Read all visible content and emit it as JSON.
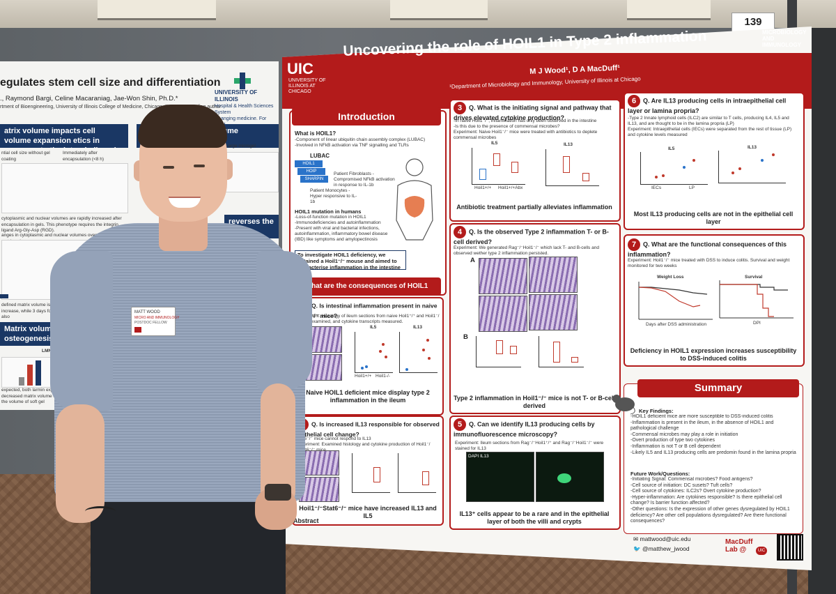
{
  "booth_number": "139",
  "left_poster": {
    "title_fragment": "egulates stem cell size and differentiation",
    "authors_fragment": "., Raymond Bargi, Celine Macaraniag, Jae-Won Shin, Ph.D.*",
    "affiliation_fragment": "rtment of Bioengineering, University of Illinois College of Medicine, Chicago, IL; *Corresponding author",
    "university": "UNIVERSITY OF ILLINOIS",
    "university_sub": "Hospital & Health Sciences System",
    "university_sub2": "Changing medicine. For good.",
    "heading_1": "atrix volume impacts cell volume expansion etics in response to the integrin ligand RGD",
    "heading_2": "es cytoplasmic ear volume",
    "heading_3": "reverses the lume expansion",
    "heading_4": "Matrix volume regulate osteogenesis distinct",
    "text_1": "ntial cell size without gel coating",
    "text_2": "Immediately after encapsulation (<8 h)",
    "text_3": "Large microgel",
    "text_4": "cytoplasmic and nuclear volumes are rapidly increased after encapsulation in gels. This phenotype requires the integrin ligand Arg-Gly-Asp (RGD).",
    "text_5": "anges in cytoplasmic and nuclear volumes over time in varied matrix volume",
    "text_6": "defined matrix volume is maintained thro plasmic volume to increase, while 3 days fo O-alginate gels. These effects are also",
    "label_lmna": "LMNA",
    "text_7": "expected, both larmin expressi pared to soft bulk hydrogels, w decreased matrix volume e volume of soft gels leads to 3 when the volume of soft gel"
  },
  "poster": {
    "institution_logo": "UIC",
    "institution_sub": "UNIVERSITY OF ILLINOIS AT CHICAGO",
    "title": "Uncovering the role of HOIL1 in Type 2 inflammation",
    "authors": "M J Wood¹, D A MacDuff¹",
    "affiliation": "¹Department of Microbiology and Immunology, University of Illinois at Chicago",
    "dept_badge": "MICROBIOLOGY AND IMMUNOLOGY",
    "introduction": {
      "header": "Introduction",
      "what_is": "What is HOIL1?",
      "bullets": "-Component of linear ubiquitin chain assembly complex (LUBAC)\n-Involved in NFkB activation via TNF signalling and TLRs",
      "lubac": "LUBAC",
      "hoil1": "HOIL1",
      "hoip": "HOIP",
      "sharpin": "SHARPIN",
      "fibroblasts": "Patient Fibroblasts - Compromised NFkB activation in response to IL-1b",
      "monocytes": "Patient Monocytes - Hyper responsive to IL-1b",
      "mutation_title": "HOIL1 mutation in humans",
      "mutation_text": "-Loss-of-function mutation in HOIL1\n-Immunodeficiencies and autoinflammation\n-Present with viral and bacterial infections, autoinflammation, inflammatory bowel disease (IBD) like symptoms and amylopectinosis",
      "aim": "To investigate HOIL1 deficiency, we obtained a Hoil1⁻/⁻ mouse and aimed to characterise inflammation in the intestine"
    },
    "consequences_header": "What are the consequences of HOIL1 deficiency?",
    "q1": {
      "number": "1",
      "question": "Q. Is intestinal inflammation present in naive Hoil1⁻/⁻ mice?",
      "experiment": "Experiment: Histology of ileum sections from naive Hoil1⁺/⁺ and Hoil1⁻/⁻ mice examined, and cytokine transcripts measured.",
      "chart1": "IL5",
      "chart2": "IL13",
      "xlab1": "Hoil1+/+",
      "xlab2": "Hoil1-/-",
      "conclusion": "Naive HOIL1 deficient mice display type 2 inflammation in the ileum"
    },
    "q2": {
      "number": "2",
      "question": "Q. Is increased IL13 responsible for observed epithelial cell change?",
      "experiment": "Stat6⁻/⁻ mice cannot respond to IL13\nExperiment: Examined histology and cytokine production of Hoil1⁻/⁻Stat6⁻/⁻ mice",
      "conclusion": "Hoil1⁻/⁻Stat6⁻/⁻ mice have increased IL13 and IL5"
    },
    "q3": {
      "number": "3",
      "question": "Q. What is the initiating signal and pathway that drives elevated cytokine production?",
      "text": "-In naive Hoil1⁻/⁻, inflammation has only been observed in the intestine\n-Is this due to the presence of commensal microbes?\nExperiment: Naive Hoil1⁻/⁻ mice were treated with antibiotics to deplete commensal microbes",
      "chart1": "IL5",
      "chart2": "IL13",
      "xlab1": "Hoil1+/+",
      "xlab2": "Hoil1+/+Abx",
      "conclusion": "Antibiotic treatment partially alleviates inflammation"
    },
    "q4": {
      "number": "4",
      "question": "Q. Is the observed Type 2 inflammation T- or B-cell derived?",
      "experiment": "Experiment: We generated Rag⁻/⁻Hoil1⁻/⁻ which lack T- and B-cells and observed wether type 2 inflammation persisted.",
      "label_a": "A",
      "label_b": "B",
      "conclusion": "Type 2 inflammation in Hoil1⁻/⁻ mice is not T- or B-cell derived"
    },
    "q5": {
      "number": "5",
      "question": "Q. Can we identify IL13 producing cells by immunofluorescence microscopy?",
      "experiment": "Experiment: Ileum sections from Rag⁻/⁻Hoil1⁺/⁺ and Rag⁻/⁻Hoil1⁻/⁻ were stained for IL13",
      "img_label": "DAPI IL13",
      "conclusion": "IL13⁺ cells appear to be a rare and in the epithelial layer of both the villi and crypts"
    },
    "q6": {
      "number": "6",
      "question": "Q. Are IL13 producing cells in intraepithelial cell layer or lamina propria?",
      "text": "-Type 2 Innate lymphoid cells (ILC2) are similar to T cells, producing IL4, IL5 and IL13, and are thought to be in the lamina propria (LP)\nExperiment: Intraepithelial cells (IECs) were separated from the rest of tissue (LP) and cytokine levels measured",
      "chart1": "IL5",
      "chart2": "IL13",
      "xlab1": "IECs",
      "xlab2": "LP",
      "conclusion": "Most IL13 producing cells are not in the epithelial cell layer"
    },
    "q7": {
      "number": "7",
      "question": "Q. What are the functional consequences of this inflammation?",
      "experiment": "Experiment: Hoil1⁻/⁻ mice treated with DSS to induce colitis. Survival and weight monitored for two weeks",
      "chart1": "Weight Loss",
      "chart2": "Survival",
      "xlab1": "Days after DSS administration",
      "xlab2": "DPI",
      "ylab1": "Weight (%)",
      "ylab2": "Percent survival",
      "conclusion": "Deficiency in HOIL1 expression increases susceptibility to DSS-induced colitis"
    },
    "summary": {
      "header": "Summary",
      "key_title": "Key Findings:",
      "key_text": "-HOIL1 deficient mice are more susceptible to DSS-induced colitis\n-Inflammation is present in the ileum, in the absence of HOIL1 and pathological challenge\n-Commensal microbes may play a role in initiation\n-Overt production of type two cytokines\n-Inflammation is not T or B cell dependent\n-Likely IL5 and IL13 producing cells are predomin found in the lamina propria",
      "future_title": "Future Work/Questions:",
      "future_text": "-Initiating Signal: Commensal microbes? Food antigens?\n-Cell source of initiation: DC susets? Tuft cells?\n-Cell source of cytokines: ILC2s? Overt cytokine production?\n-Hyper-inflammation: Are cytokines responsible? Is there epithelial cell change? Is barrier function affected?\n-Other questions: Is the expression of other genes dysregulated by HOIL1 deficiency? Are other cell populations dysregulated? Are there functional consequences?"
    },
    "abstract_label": "Abstract",
    "email": "mattwood@uic.edu",
    "twitter": "@matthew_jwood",
    "lab": "MacDuff Lab @",
    "lab_logo": "UIC"
  },
  "badge": {
    "name": "MATT WOOD",
    "dept": "MICRO AND IMMUNOLOGY",
    "role": "POSTDOC FELLOW"
  }
}
